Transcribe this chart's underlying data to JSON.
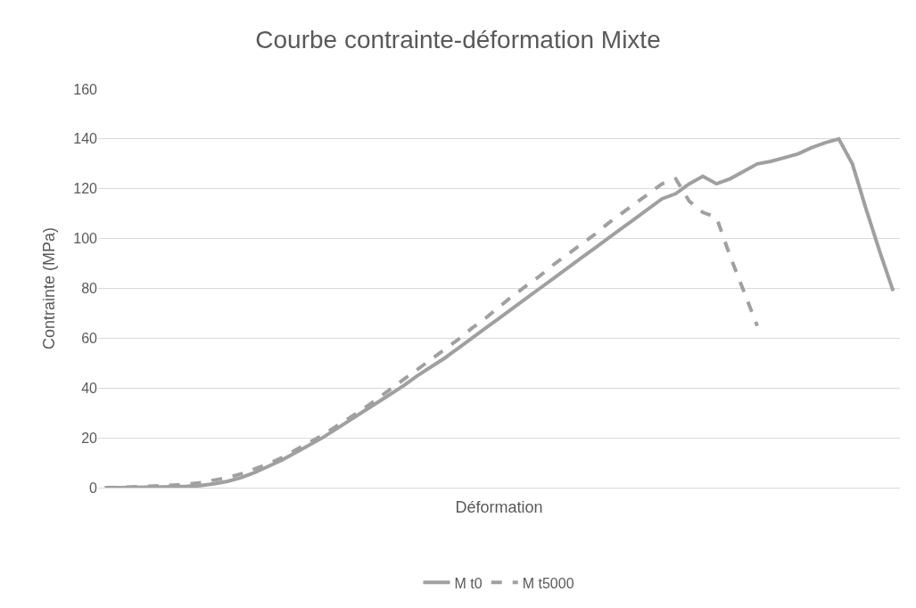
{
  "chart_data": {
    "type": "line",
    "title": "Courbe contrainte-déformation Mixte",
    "xlabel": "Déformation",
    "ylabel": "Contrainte (MPa)",
    "categories": [
      null,
      null,
      null,
      null,
      null,
      null,
      null,
      null,
      null,
      null,
      null,
      null,
      null,
      null,
      null,
      null,
      null,
      null,
      null,
      null,
      null,
      null,
      null,
      null,
      null,
      null,
      null,
      null,
      null,
      null,
      null,
      null,
      null,
      null,
      null,
      null,
      null,
      null,
      null,
      null,
      null,
      null,
      null,
      null,
      null,
      null,
      null,
      null,
      null,
      null,
      null,
      null,
      null,
      null,
      null,
      null,
      null,
      null,
      null
    ],
    "series": [
      {
        "name": "M t0",
        "color": "#a0a0a0",
        "line_style": "solid",
        "values": [
          0,
          0,
          0.1,
          0.2,
          0.3,
          0.4,
          0.5,
          0.8,
          1.5,
          2.5,
          4,
          6,
          8.5,
          11,
          14,
          17,
          20,
          23.5,
          27,
          30.5,
          34,
          37.5,
          41,
          45,
          48.5,
          52,
          56,
          60,
          64,
          68,
          72,
          76,
          80,
          84,
          88,
          92,
          96,
          100,
          104,
          108,
          112,
          116,
          118,
          122,
          125,
          122,
          124,
          127,
          130,
          131,
          132.5,
          134,
          136.5,
          138.5,
          140,
          130,
          112,
          95,
          79
        ]
      },
      {
        "name": "M t5000",
        "color": "#a0a0a0",
        "line_style": "dashed",
        "values": [
          0,
          0.1,
          0.3,
          0.5,
          0.7,
          1,
          1.3,
          2,
          3,
          4,
          5.5,
          7.5,
          9.5,
          12,
          15,
          18,
          21,
          24.5,
          28,
          31.5,
          35.5,
          39.5,
          43.5,
          47.5,
          51.5,
          55.5,
          59.5,
          64,
          68,
          72.5,
          77,
          81,
          85,
          89.5,
          93.5,
          97.5,
          101.5,
          106,
          110,
          114,
          118,
          122,
          124,
          115,
          110.5,
          108.5,
          93,
          79,
          65,
          null,
          null,
          null,
          null,
          null,
          null,
          null,
          null,
          null,
          null
        ]
      }
    ],
    "ylim": [
      0,
      160
    ],
    "yticks": [
      0,
      20,
      40,
      60,
      80,
      100,
      120,
      140,
      160
    ],
    "grid": "y",
    "legend": "bottom",
    "tick_labels": "y"
  }
}
